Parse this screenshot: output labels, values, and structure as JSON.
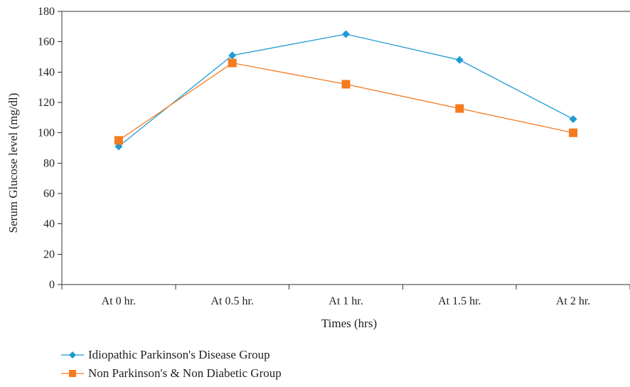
{
  "chart_data": {
    "type": "line",
    "categories": [
      "At 0 hr.",
      "At 0.5 hr.",
      "At 1 hr.",
      "At 1.5 hr.",
      "At 2 hr."
    ],
    "series": [
      {
        "name": "Idiopathic Parkinson's Disease Group",
        "values": [
          91,
          151,
          165,
          148,
          109
        ],
        "color": "#1f9bd5",
        "marker": "diamond"
      },
      {
        "name": "Non Parkinson's & Non Diabetic Group",
        "values": [
          95,
          146,
          132,
          116,
          100
        ],
        "color": "#f47b20",
        "marker": "square"
      }
    ],
    "xlabel": "Times (hrs)",
    "ylabel": "Serum Glucose level (mg/dl)",
    "ylim": [
      0,
      180
    ],
    "yticks": [
      0,
      20,
      40,
      60,
      80,
      100,
      120,
      140,
      160,
      180
    ],
    "grid": false,
    "legend_position": "bottom-left"
  }
}
